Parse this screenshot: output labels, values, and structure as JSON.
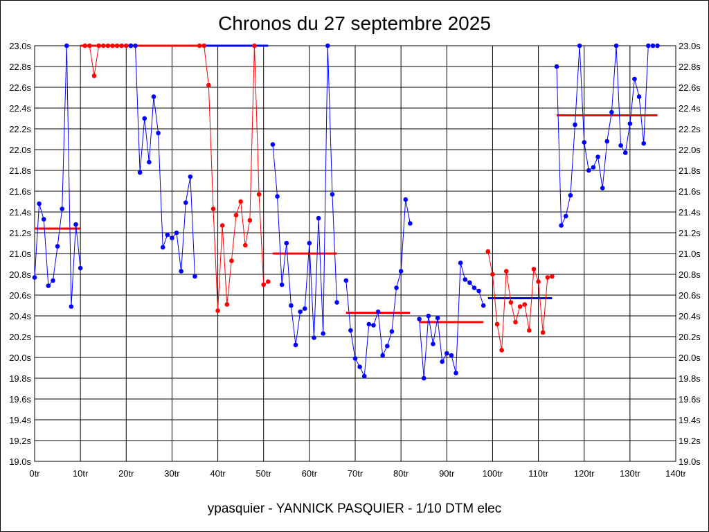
{
  "title": "Chronos du 27 septembre 2025",
  "footer": "ypasquier - YANNICK PASQUIER - 1/10 DTM elec",
  "chart_data": {
    "type": "line",
    "title": "Chronos du 27 septembre 2025",
    "xlim": [
      0,
      140
    ],
    "ylim": [
      19.0,
      23.0
    ],
    "grid": true,
    "x_ticks": [
      0,
      10,
      20,
      30,
      40,
      50,
      60,
      70,
      80,
      90,
      100,
      110,
      120,
      130,
      140
    ],
    "x_tick_labels": [
      "0tr",
      "10tr",
      "20tr",
      "30tr",
      "40tr",
      "50tr",
      "60tr",
      "70tr",
      "80tr",
      "90tr",
      "100tr",
      "110tr",
      "120tr",
      "130tr",
      "140tr"
    ],
    "y_ticks": [
      19.0,
      19.2,
      19.4,
      19.6,
      19.8,
      20.0,
      20.2,
      20.4,
      20.6,
      20.8,
      21.0,
      21.2,
      21.4,
      21.6,
      21.8,
      22.0,
      22.2,
      22.4,
      22.6,
      22.8,
      23.0
    ],
    "y_tick_labels": [
      "19.0s",
      "19.2s",
      "19.4s",
      "19.6s",
      "19.8s",
      "20.0s",
      "20.2s",
      "20.4s",
      "20.6s",
      "20.8s",
      "21.0s",
      "21.2s",
      "21.4s",
      "21.6s",
      "21.8s",
      "22.0s",
      "22.2s",
      "22.4s",
      "22.6s",
      "22.8s",
      "23.0s"
    ],
    "series": [
      {
        "color": "#0000ff",
        "x": [
          0,
          1,
          2,
          3,
          4,
          5,
          6,
          7,
          8,
          9,
          10
        ],
        "y": [
          20.77,
          21.48,
          21.33,
          20.69,
          20.74,
          21.07,
          21.43,
          23.0,
          20.49,
          21.28,
          20.86
        ],
        "mean": 21.24
      },
      {
        "color": "#ff0000",
        "x": [
          11,
          12,
          13,
          14,
          15,
          16,
          17,
          18,
          19,
          20,
          21
        ],
        "y": [
          23.0,
          23.0,
          22.71,
          23.0,
          23.0,
          23.0,
          23.0,
          23.0,
          23.0,
          23.0,
          23.0
        ],
        "mean": 23.0
      },
      {
        "color": "#0000ff",
        "x": [
          21,
          22,
          23,
          24,
          25,
          26,
          27,
          28,
          29,
          30,
          31,
          32,
          33,
          34,
          35
        ],
        "y": [
          23.0,
          23.0,
          21.78,
          22.3,
          21.88,
          22.51,
          22.16,
          21.06,
          21.18,
          21.15,
          21.2,
          20.83,
          21.49,
          21.74,
          20.78
        ],
        "mean": 23.0
      },
      {
        "color": "#ff0000",
        "x": [
          36,
          37,
          38,
          39,
          40,
          41,
          42,
          43,
          44,
          45,
          46,
          47,
          48,
          49,
          50,
          51
        ],
        "y": [
          23.0,
          23.0,
          22.62,
          21.43,
          20.45,
          21.27,
          20.51,
          20.93,
          21.37,
          21.5,
          21.08,
          21.32,
          23.0,
          21.57,
          20.7,
          20.73
        ],
        "mean": 23.0
      },
      {
        "color": "#0000ff",
        "x": [
          52,
          53,
          54,
          55,
          56,
          57,
          58,
          59,
          60,
          61,
          62,
          63,
          64,
          65,
          66
        ],
        "y": [
          22.05,
          21.55,
          20.7,
          21.1,
          20.5,
          20.12,
          20.44,
          20.47,
          21.1,
          20.19,
          21.34,
          20.23,
          23.0,
          21.57,
          20.53
        ],
        "mean": 21.0
      },
      {
        "color": "#0000ff",
        "x": [
          68,
          69,
          70,
          71,
          72,
          73,
          74,
          75,
          76,
          77,
          78,
          79,
          80,
          81,
          82
        ],
        "y": [
          20.74,
          20.26,
          19.99,
          19.91,
          19.82,
          20.32,
          20.31,
          20.44,
          20.02,
          20.11,
          20.25,
          20.67,
          20.83,
          21.52,
          21.29
        ],
        "mean": 20.43
      },
      {
        "color": "#0000ff",
        "x": [
          84,
          85,
          86,
          87,
          88,
          89,
          90,
          91,
          92,
          93,
          94,
          95,
          96,
          97,
          98
        ],
        "y": [
          20.37,
          19.8,
          20.4,
          20.13,
          20.38,
          19.96,
          20.04,
          20.02,
          19.85,
          20.91,
          20.75,
          20.72,
          20.67,
          20.64,
          20.5
        ],
        "mean": 20.34
      },
      {
        "color": "#ff0000",
        "x": [
          99,
          100,
          101,
          102,
          103,
          104,
          105,
          106,
          107,
          108,
          109,
          110,
          111,
          112,
          113
        ],
        "y": [
          21.02,
          20.8,
          20.32,
          20.07,
          20.83,
          20.53,
          20.34,
          20.49,
          20.51,
          20.26,
          20.85,
          20.73,
          20.24,
          20.77,
          20.78
        ],
        "mean": 20.57
      },
      {
        "color": "#0000ff",
        "x": [
          114,
          115,
          116,
          117,
          118,
          119,
          120,
          121,
          122,
          123,
          124,
          125,
          126,
          127,
          128,
          129,
          130,
          131,
          132,
          133,
          134,
          135,
          136
        ],
        "y": [
          22.8,
          21.27,
          21.36,
          21.56,
          22.24,
          23.0,
          22.07,
          21.8,
          21.83,
          21.93,
          21.63,
          22.08,
          22.36,
          23.0,
          22.04,
          21.97,
          22.25,
          22.68,
          22.51,
          22.06,
          23.0,
          23.0,
          23.0
        ],
        "mean": 22.33
      }
    ],
    "mean_lines": [
      {
        "color": "#ff0000",
        "x": [
          0,
          10
        ],
        "y": 21.24
      },
      {
        "color": "#ff0000",
        "x": [
          10,
          29
        ],
        "y": 23.0
      },
      {
        "color": "#ff0000",
        "x": [
          29,
          37
        ],
        "y": 23.0
      },
      {
        "color": "#0000ff",
        "x": [
          37,
          51
        ],
        "y": 23.0
      },
      {
        "color": "#ff0000",
        "x": [
          52,
          66
        ],
        "y": 21.0
      },
      {
        "color": "#ff0000",
        "x": [
          68,
          82
        ],
        "y": 20.43
      },
      {
        "color": "#ff0000",
        "x": [
          84,
          98
        ],
        "y": 20.34
      },
      {
        "color": "#0000ff",
        "x": [
          99,
          113
        ],
        "y": 20.57
      },
      {
        "color": "#ff0000",
        "x": [
          114,
          136
        ],
        "y": 22.33
      }
    ]
  }
}
